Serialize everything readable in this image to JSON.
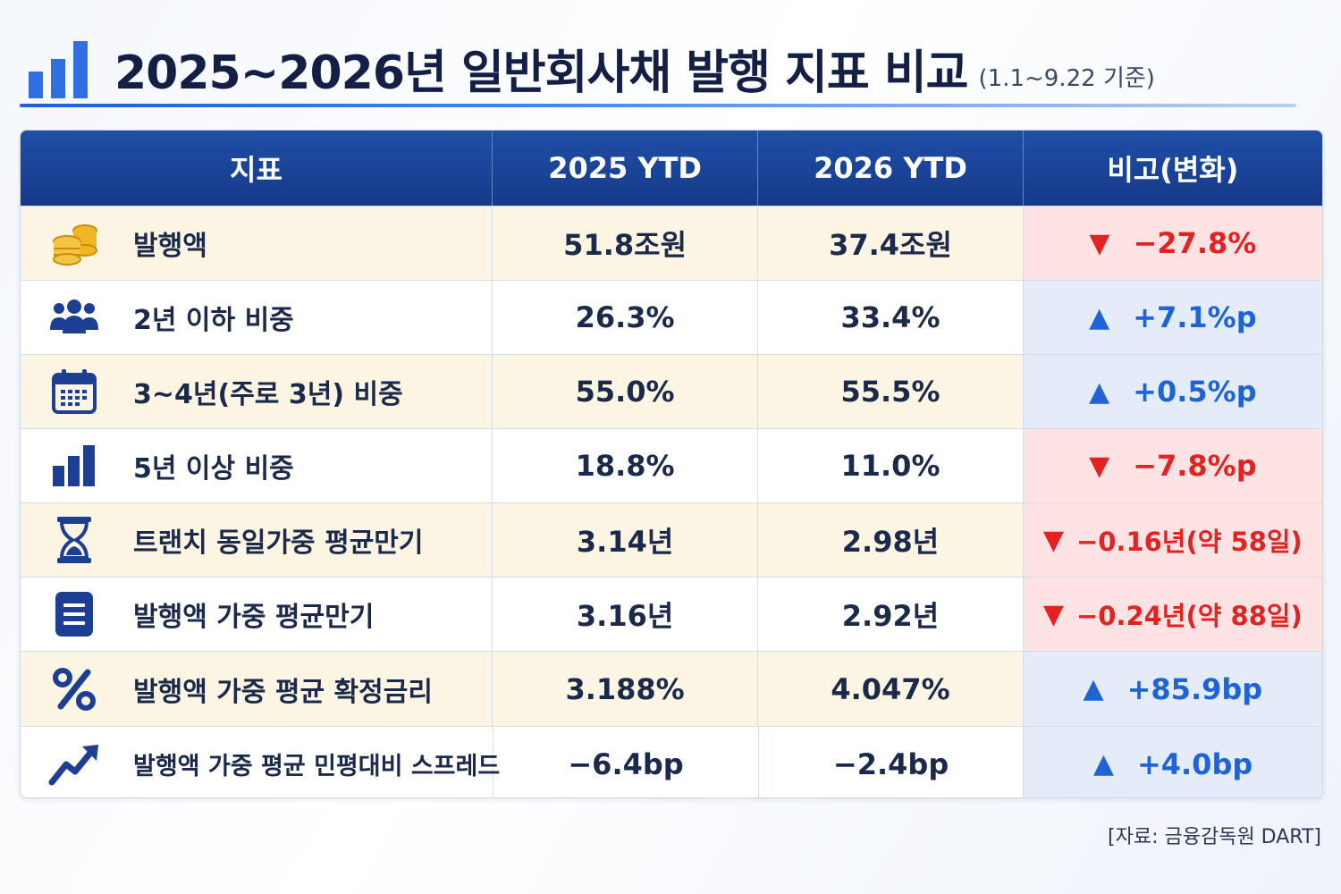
{
  "header": {
    "title": "2025~2026년 일반회사채 발행 지표 비교",
    "subtitle": "(1.1~9.22 기준)"
  },
  "table": {
    "columns": [
      "지표",
      "2025 YTD",
      "2026 YTD",
      "비고(변화)"
    ],
    "rows": [
      {
        "icon": "coins-icon",
        "label": "발행액",
        "v2025": "51.8조원",
        "v2026": "37.4조원",
        "arrow": "▼",
        "change": "−27.8%",
        "direction": "down"
      },
      {
        "icon": "people-icon",
        "label": "2년 이하 비중",
        "v2025": "26.3%",
        "v2026": "33.4%",
        "arrow": "▲",
        "change": "+7.1%p",
        "direction": "up"
      },
      {
        "icon": "calendar-icon",
        "label": "3~4년(주로 3년) 비중",
        "v2025": "55.0%",
        "v2026": "55.5%",
        "arrow": "▲",
        "change": "+0.5%p",
        "direction": "up"
      },
      {
        "icon": "bar-chart-icon",
        "label": "5년 이상 비중",
        "v2025": "18.8%",
        "v2026": "11.0%",
        "arrow": "▼",
        "change": "−7.8%p",
        "direction": "down"
      },
      {
        "icon": "hourglass-icon",
        "label": "트랜치 동일가중 평균만기",
        "v2025": "3.14년",
        "v2026": "2.98년",
        "arrow": "▼",
        "change": "−0.16년(약 58일)",
        "direction": "down"
      },
      {
        "icon": "document-icon",
        "label": "발행액 가중 평균만기",
        "v2025": "3.16년",
        "v2026": "2.92년",
        "arrow": "▼",
        "change": "−0.24년(약 88일)",
        "direction": "down"
      },
      {
        "icon": "percent-icon",
        "label": "발행액 가중 평균 확정금리",
        "v2025": "3.188%",
        "v2026": "4.047%",
        "arrow": "▲",
        "change": "+85.9bp",
        "direction": "up"
      },
      {
        "icon": "trend-up-icon",
        "label": "발행액 가중 평균 민평대비 스프레드",
        "v2025": "−6.4bp",
        "v2026": "−2.4bp",
        "arrow": "▲",
        "change": "+4.0bp",
        "direction": "up"
      }
    ]
  },
  "source": "[자료: 금융감독원 DART]",
  "colors": {
    "header_bg": "#16398a",
    "alt_row_bg": "#fcf5e3",
    "down": "#e52222",
    "down_bg": "#fde3e3",
    "up": "#1f63d8",
    "up_bg": "#e3ecf8",
    "icon": "#1c3f94",
    "coin": "#f0b623"
  }
}
